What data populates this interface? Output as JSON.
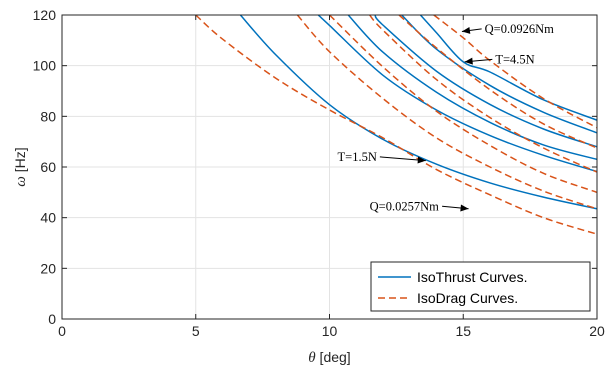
{
  "chart_data": {
    "type": "line",
    "title": "",
    "xlabel": {
      "symbol": "θ",
      "unit": " [deg]"
    },
    "ylabel": {
      "symbol": "ω",
      "unit": " [Hz]"
    },
    "xlim": [
      0,
      20
    ],
    "ylim": [
      0,
      120
    ],
    "xticks": [
      0,
      5,
      10,
      15,
      20
    ],
    "yticks": [
      0,
      20,
      40,
      60,
      80,
      100,
      120
    ],
    "grid": true,
    "legend_position": "bottom-right",
    "colors": {
      "thrust": "#0072BD",
      "drag": "#D95319"
    },
    "legend": [
      {
        "label": "IsoThrust Curves.",
        "style": "solid",
        "color": "#0072BD"
      },
      {
        "label": "IsoDrag Curves.",
        "style": "dashed",
        "color": "#D95319"
      }
    ],
    "series": [
      {
        "group": "thrust",
        "style": "solid",
        "x": [
          6.67,
          8,
          10,
          12,
          14,
          16,
          18,
          20
        ],
        "y": [
          120,
          104.2,
          84.6,
          70.9,
          61.1,
          53.7,
          48.1,
          43.5
        ]
      },
      {
        "group": "thrust",
        "style": "solid",
        "x": [
          9.58,
          10,
          12,
          14,
          16,
          18,
          20
        ],
        "y": [
          120,
          115.9,
          96.2,
          82.5,
          72.4,
          64.6,
          58.2
        ]
      },
      {
        "group": "thrust",
        "style": "solid",
        "x": [
          10.7,
          12,
          14,
          16,
          18,
          20
        ],
        "y": [
          120,
          105.3,
          89.5,
          77.6,
          68.7,
          63.0
        ]
      },
      {
        "group": "thrust",
        "style": "solid",
        "x": [
          11.7,
          12,
          14,
          16,
          18,
          20
        ],
        "y": [
          120,
          116.0,
          97.8,
          84.7,
          75.0,
          68.0
        ]
      },
      {
        "group": "thrust",
        "style": "solid",
        "x": [
          12.7,
          14,
          16,
          18,
          20
        ],
        "y": [
          120,
          106.5,
          92.2,
          81.6,
          73.5
        ]
      },
      {
        "group": "thrust",
        "style": "solid",
        "x": [
          13.4,
          14,
          15,
          16,
          18,
          20
        ],
        "y": [
          120,
          113.0,
          101.5,
          97.5,
          86.5,
          78.5
        ]
      },
      {
        "group": "drag",
        "style": "dashed",
        "x": [
          5.0,
          6,
          8,
          10,
          12,
          14,
          16,
          18,
          20
        ],
        "y": [
          120,
          110.5,
          95.0,
          82.5,
          71.5,
          59.0,
          49.0,
          40.0,
          33.5
        ]
      },
      {
        "group": "drag",
        "style": "dashed",
        "x": [
          8.8,
          10,
          12,
          14,
          16,
          18,
          20
        ],
        "y": [
          120,
          105.5,
          87.0,
          71.5,
          60.0,
          50.5,
          43.5
        ]
      },
      {
        "group": "drag",
        "style": "dashed",
        "x": [
          10.0,
          12,
          14,
          16,
          18,
          20
        ],
        "y": [
          120,
          99.5,
          82.0,
          68.5,
          57.5,
          50.0
        ]
      },
      {
        "group": "drag",
        "style": "dashed",
        "x": [
          11.5,
          12,
          14,
          16,
          18,
          20
        ],
        "y": [
          120,
          114.0,
          94.5,
          79.5,
          67.5,
          58.0
        ]
      },
      {
        "group": "drag",
        "style": "dashed",
        "x": [
          12.6,
          14,
          16,
          18,
          20
        ],
        "y": [
          120,
          107.0,
          90.5,
          77.0,
          67.5
        ]
      },
      {
        "group": "drag",
        "style": "dashed",
        "x": [
          13.9,
          15,
          16,
          18,
          20
        ],
        "y": [
          120,
          111.0,
          102.0,
          87.0,
          75.5
        ]
      }
    ],
    "annotations": [
      {
        "text": "Q=0.0926Nm",
        "x": 15.8,
        "y": 114.5,
        "arrow_to": [
          14.95,
          113.5
        ]
      },
      {
        "text": "T=4.5N",
        "x": 16.2,
        "y": 102.5,
        "arrow_to": [
          15.05,
          101.5
        ]
      },
      {
        "text": "T=1.5N",
        "x": 10.3,
        "y": 64.0,
        "arrow_to": [
          13.6,
          62.5
        ]
      },
      {
        "text": "Q=0.0257Nm",
        "x": 11.5,
        "y": 44.5,
        "arrow_to": [
          15.2,
          43.5
        ]
      }
    ]
  }
}
